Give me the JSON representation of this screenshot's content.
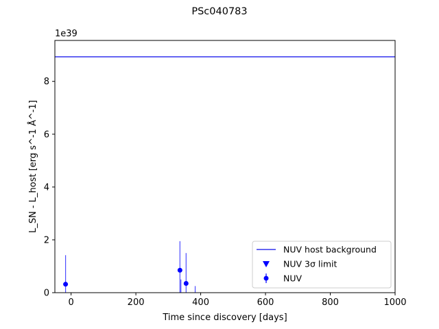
{
  "chart_data": {
    "type": "scatter",
    "title": "PSc040783",
    "xlabel": "Time since discovery [days]",
    "ylabel": "L_SN - L_host [erg s^-1 Å^-1]",
    "y_scale_label": "1e39",
    "y_multiplier": 1e+39,
    "xlim": [
      -50,
      1000
    ],
    "ylim": [
      0,
      9.55
    ],
    "x_ticks": [
      0,
      200,
      400,
      600,
      800,
      1000
    ],
    "x_tick_labels": [
      "0",
      "200",
      "400",
      "600",
      "800",
      "1000"
    ],
    "y_ticks": [
      0,
      2,
      4,
      6,
      8
    ],
    "y_tick_labels": [
      "0",
      "2",
      "4",
      "6",
      "8"
    ],
    "grid": false,
    "legend_position": "lower right",
    "colors": {
      "nuv": "#0000ff",
      "background_line": "#3333ee"
    },
    "series": [
      {
        "name": "NUV host background",
        "kind": "hline",
        "y": 8.93
      },
      {
        "name": "NUV 3σ limit",
        "kind": "upper_limit",
        "points": []
      },
      {
        "name": "NUV",
        "kind": "errorbar",
        "points": [
          {
            "x": -17,
            "y": 0.32,
            "yerr": 1.1
          },
          {
            "x": 336,
            "y": 0.85,
            "yerr": 1.1
          },
          {
            "x": 339,
            "y": 0.0,
            "yerr": 0.5
          },
          {
            "x": 355,
            "y": 0.35,
            "yerr": 1.15
          },
          {
            "x": 383,
            "y": 0.0,
            "yerr": 0.25
          }
        ]
      }
    ]
  }
}
